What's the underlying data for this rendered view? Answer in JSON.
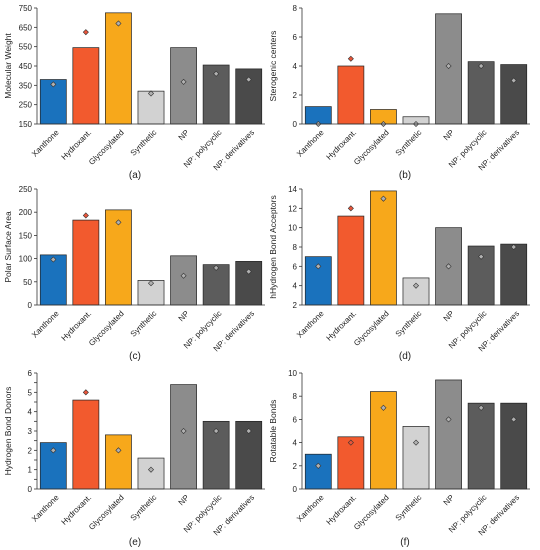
{
  "chart_data": [
    {
      "type": "bar",
      "panel_label": "(a)",
      "ylabel": "Molecular Weight",
      "ylim": [
        150,
        750
      ],
      "yticks": [
        150,
        250,
        350,
        450,
        550,
        650,
        750
      ],
      "categories": [
        "Xanthone",
        "Hydroxant.",
        "Glycosylated",
        "Synthetic",
        "NP",
        "NP: polycyclic",
        "NP: derivatives"
      ],
      "values": [
        380,
        545,
        725,
        320,
        545,
        455,
        435
      ],
      "markers": [
        355,
        625,
        670,
        308,
        368,
        410,
        380
      ]
    },
    {
      "type": "bar",
      "panel_label": "(b)",
      "ylabel": "Sterogenic centers",
      "ylim": [
        0,
        8
      ],
      "yticks": [
        0,
        2,
        4,
        6,
        8
      ],
      "categories": [
        "Xanthone",
        "Hydroxant.",
        "Glycosylated",
        "Synthetic",
        "NP",
        "NP: polycyclic",
        "NP: derivatives"
      ],
      "values": [
        1.2,
        4.0,
        1.0,
        0.5,
        7.6,
        4.3,
        4.1
      ],
      "markers": [
        0,
        4.5,
        0,
        0,
        4.0,
        4.0,
        3.0
      ]
    },
    {
      "type": "bar",
      "panel_label": "(c)",
      "ylabel": "Polar Surface Area",
      "ylim": [
        0,
        250
      ],
      "yticks": [
        0,
        50,
        100,
        150,
        200,
        250
      ],
      "categories": [
        "Xanthone",
        "Hydroxant.",
        "Glycosylated",
        "Synthetic",
        "NP",
        "NP: polycyclic",
        "NP: derivatives"
      ],
      "values": [
        108,
        183,
        205,
        53,
        106,
        87,
        94
      ],
      "markers": [
        98,
        193,
        178,
        47,
        63,
        80,
        72
      ]
    },
    {
      "type": "bar",
      "panel_label": "(d)",
      "ylabel": "hHydrogen Bond Acceptors",
      "ylim": [
        2,
        14
      ],
      "yticks": [
        2,
        4,
        6,
        8,
        10,
        12,
        14
      ],
      "categories": [
        "Xanthone",
        "Hydroxant.",
        "Glycosylated",
        "Synthetic",
        "NP",
        "NP: polycyclic",
        "NP: derivatives"
      ],
      "values": [
        7.0,
        11.2,
        13.8,
        4.8,
        10.0,
        8.1,
        8.3
      ],
      "markers": [
        6.0,
        12.0,
        13.0,
        4.0,
        6.0,
        7.0,
        8.0
      ]
    },
    {
      "type": "bar",
      "panel_label": "(e)",
      "ylabel": "Hydrogen Bond Donors",
      "ylim": [
        0,
        6
      ],
      "yticks": [
        0,
        0.5,
        1,
        1.5,
        2,
        2.5,
        3,
        3.5,
        4,
        4.5,
        5,
        5.5,
        6
      ],
      "yticklabels": [
        "0",
        "",
        "1",
        "",
        "2",
        "",
        "3",
        "",
        "4",
        "",
        "5",
        "",
        "6"
      ],
      "categories": [
        "Xanthone",
        "Hydroxant.",
        "Glycosylated",
        "Synthetic",
        "NP",
        "NP: polycyclic",
        "NP: derivatives"
      ],
      "values": [
        2.4,
        4.6,
        2.8,
        1.6,
        5.4,
        3.5,
        3.5
      ],
      "markers": [
        2.0,
        5.0,
        2.0,
        1.0,
        3.0,
        3.0,
        3.0
      ]
    },
    {
      "type": "bar",
      "panel_label": "(f)",
      "ylabel": "Rotatable Bonds",
      "ylim": [
        0,
        10
      ],
      "yticks": [
        0,
        2,
        4,
        6,
        8,
        10
      ],
      "categories": [
        "Xanthone",
        "Hydroxant.",
        "Glycosylated",
        "Synthetic",
        "NP",
        "NP: polycyclic",
        "NP: derivatives"
      ],
      "values": [
        3.0,
        4.5,
        8.4,
        5.4,
        9.4,
        7.4,
        7.4
      ],
      "markers": [
        2.0,
        4.0,
        7.0,
        4.0,
        6.0,
        7.0,
        6.0
      ]
    }
  ],
  "colors": {
    "bars": [
      "#1a72bd",
      "#f25a2e",
      "#f7a81b",
      "#d2d2d2",
      "#8c8c8c",
      "#5c5c5c",
      "#4a4a4a"
    ],
    "marker_highlight": "#e8553a",
    "marker_default": "#b0b0b0",
    "highlight_marker_categories": [
      "Hydroxant."
    ]
  }
}
